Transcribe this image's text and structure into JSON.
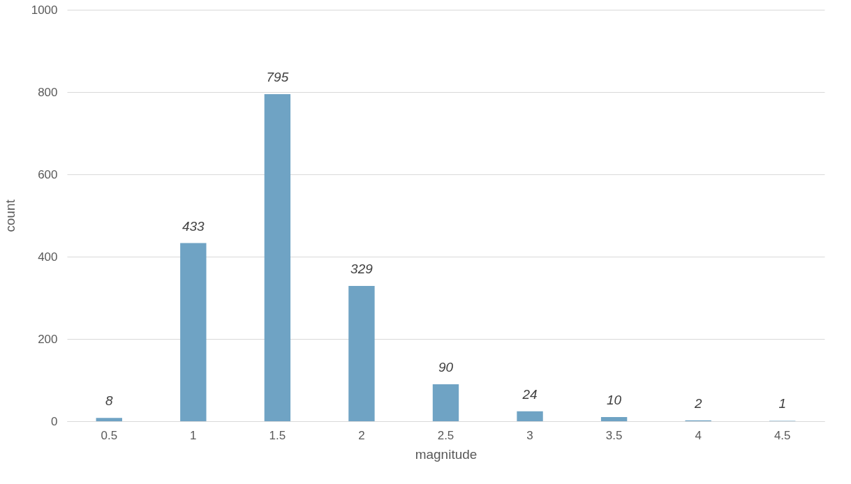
{
  "chart_data": {
    "type": "bar",
    "xlabel": "magnitude",
    "ylabel": "count",
    "categories": [
      "0.5",
      "1",
      "1.5",
      "2",
      "2.5",
      "3",
      "3.5",
      "4",
      "4.5"
    ],
    "values": [
      8,
      433,
      795,
      329,
      90,
      24,
      10,
      2,
      1
    ],
    "color": "#6fa3c4",
    "ylim": [
      0,
      1000
    ],
    "yticks": [
      0,
      200,
      400,
      600,
      800,
      1000
    ],
    "grid": "y",
    "data_labels": true
  }
}
